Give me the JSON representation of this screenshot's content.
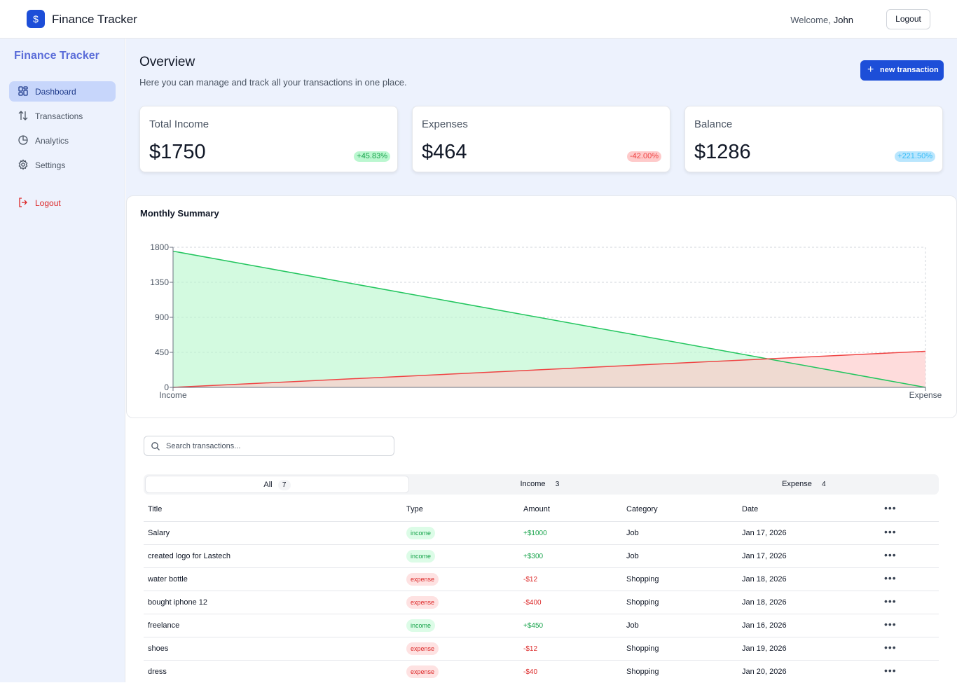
{
  "header": {
    "brand_icon": "$",
    "brand_name": "Finance Tracker",
    "welcome_label": "Welcome,",
    "user_name": "John",
    "logout_label": "Logout"
  },
  "sidebar": {
    "title": "Finance Tracker",
    "items": [
      {
        "label": "Dashboard",
        "icon": "dashboard-icon",
        "active": true
      },
      {
        "label": "Transactions",
        "icon": "transactions-icon",
        "active": false
      },
      {
        "label": "Analytics",
        "icon": "analytics-icon",
        "active": false
      },
      {
        "label": "Settings",
        "icon": "settings-icon",
        "active": false
      }
    ],
    "logout_label": "Logout"
  },
  "overview": {
    "title": "Overview",
    "subtitle": "Here you can manage and track all your transactions in one place.",
    "new_transaction_label": "new transaction",
    "cards": [
      {
        "title": "Total Income",
        "value": "$1750",
        "change": "+45.83%",
        "tone": "green"
      },
      {
        "title": "Expenses",
        "value": "$464",
        "change": "-42.00%",
        "tone": "red"
      },
      {
        "title": "Balance",
        "value": "$1286",
        "change": "+221.50%",
        "tone": "blue"
      }
    ]
  },
  "chart_data": {
    "type": "area",
    "title": "Monthly Summary",
    "categories": [
      "Income",
      "Expense"
    ],
    "series": [
      {
        "name": "",
        "values": [
          1750,
          0
        ],
        "color": "#22c55e",
        "fill": "#bbf7d0"
      },
      {
        "name": "",
        "values": [
          0,
          464
        ],
        "color": "#ef4444",
        "fill": "#fecaca"
      }
    ],
    "yticks": [
      0,
      450,
      900,
      1350,
      1800
    ],
    "ylim": [
      0,
      1800
    ],
    "grid": true
  },
  "transactions": {
    "search_placeholder": "Search transactions...",
    "tabs": [
      {
        "label": "All",
        "count": "7",
        "active": true
      },
      {
        "label": "Income",
        "count": "3",
        "active": false
      },
      {
        "label": "Expense",
        "count": "4",
        "active": false
      }
    ],
    "columns": [
      "Title",
      "Type",
      "Amount",
      "Category",
      "Date"
    ],
    "more_label": "•••",
    "rows": [
      {
        "title": "Salary",
        "type": "income",
        "amount": "+$1000",
        "category": "Job",
        "date": "Jan 17, 2026"
      },
      {
        "title": "created logo for Lastech",
        "type": "income",
        "amount": "+$300",
        "category": "Job",
        "date": "Jan 17, 2026"
      },
      {
        "title": "water bottle",
        "type": "expense",
        "amount": "-$12",
        "category": "Shopping",
        "date": "Jan 18, 2026"
      },
      {
        "title": "bought iphone 12",
        "type": "expense",
        "amount": "-$400",
        "category": "Shopping",
        "date": "Jan 18, 2026"
      },
      {
        "title": "freelance",
        "type": "income",
        "amount": "+$450",
        "category": "Job",
        "date": "Jan 16, 2026"
      },
      {
        "title": "shoes",
        "type": "expense",
        "amount": "-$12",
        "category": "Shopping",
        "date": "Jan 19, 2026"
      },
      {
        "title": "dress",
        "type": "expense",
        "amount": "-$40",
        "category": "Shopping",
        "date": "Jan 20, 2026"
      }
    ]
  }
}
